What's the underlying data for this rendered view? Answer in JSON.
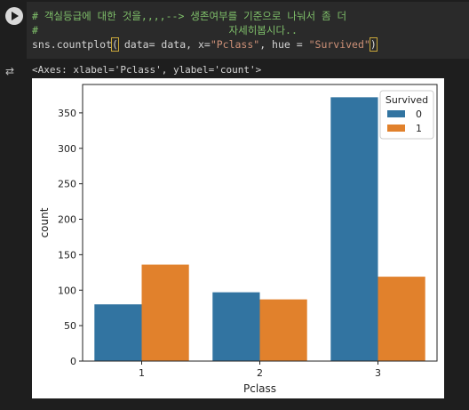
{
  "code": {
    "line1": "# 객실등급에 대한 것을,,,,--> 생존여부를 기준으로 나눠서 좀 더",
    "line2": "#                               자세히봅시다..",
    "line3_prefix": "sns.countplot",
    "line3_open": "(",
    "line3_mid": " data= data, x=",
    "line3_x": "\"Pclass\"",
    "line3_mid2": ", hue = ",
    "line3_hue": "\"Survived\"",
    "line3_close": ")"
  },
  "output": {
    "text": "<Axes: xlabel='Pclass', ylabel='count'>",
    "icon": "output-toggle-icon"
  },
  "colors": {
    "series0": "#3274a1",
    "series1": "#e1812c"
  },
  "chart_data": {
    "type": "bar",
    "categories": [
      "1",
      "2",
      "3"
    ],
    "series": [
      {
        "name": "0",
        "values": [
          80,
          97,
          372
        ]
      },
      {
        "name": "1",
        "values": [
          136,
          87,
          119
        ]
      }
    ],
    "xlabel": "Pclass",
    "ylabel": "count",
    "ylim": [
      0,
      390
    ],
    "yticks": [
      0,
      50,
      100,
      150,
      200,
      250,
      300,
      350
    ],
    "legend_title": "Survived",
    "legend_position": "top-right",
    "grid": false
  }
}
